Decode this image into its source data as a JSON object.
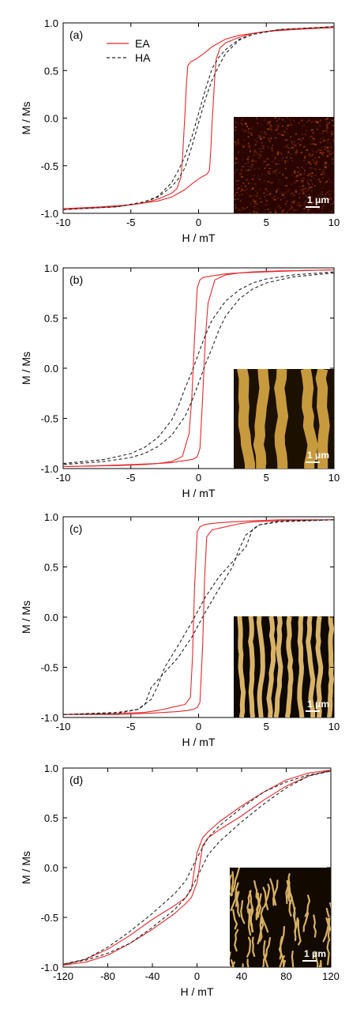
{
  "chart_data": [
    {
      "type": "line",
      "panel_label": "(a)",
      "xlabel": "H / mT",
      "ylabel": "M / Ms",
      "xlim": [
        -10,
        10
      ],
      "ylim": [
        -1.0,
        1.0
      ],
      "xticks": [
        "-10",
        "-5",
        "0",
        "5",
        "10"
      ],
      "yticks": [
        "1.0",
        "0.5",
        "0.0",
        "-0.5",
        "-1.0"
      ],
      "grid": false,
      "legend": [
        "EA",
        "HA"
      ],
      "legend_position": "top-left",
      "inset": {
        "scale_bar": "1 μm",
        "palette": "fine-speckle",
        "colors": [
          "#2a0500",
          "#a8420e"
        ]
      },
      "series": [
        {
          "name": "EA",
          "color": "#e8282b",
          "style": "solid",
          "branches": [
            {
              "x": [
                -10,
                -6,
                -4,
                -3,
                -2,
                -1.6,
                -1.3,
                -1.2,
                -1.1,
                -1.0,
                -0.9,
                -0.8,
                -0.6,
                -0.2,
                0.4,
                1.0,
                2.0,
                3.0,
                5.0,
                7.0,
                10
              ],
              "y": [
                -0.96,
                -0.93,
                -0.89,
                -0.85,
                -0.79,
                -0.74,
                -0.62,
                -0.45,
                -0.2,
                0.05,
                0.35,
                0.55,
                0.59,
                0.62,
                0.68,
                0.75,
                0.83,
                0.87,
                0.91,
                0.93,
                0.95
              ]
            },
            {
              "x": [
                10,
                6,
                4,
                3,
                2,
                1.6,
                1.3,
                1.2,
                1.1,
                1.0,
                0.9,
                0.8,
                0.6,
                0.2,
                -0.4,
                -1.0,
                -2.0,
                -3.0,
                -5.0,
                -7.0,
                -10
              ],
              "y": [
                0.96,
                0.93,
                0.89,
                0.85,
                0.79,
                0.74,
                0.62,
                0.45,
                0.2,
                -0.05,
                -0.35,
                -0.55,
                -0.59,
                -0.62,
                -0.68,
                -0.75,
                -0.83,
                -0.87,
                -0.91,
                -0.93,
                -0.95
              ]
            }
          ]
        },
        {
          "name": "HA",
          "color": "#222222",
          "style": "dashed",
          "branches": [
            {
              "x": [
                -10,
                -6,
                -4,
                -3,
                -2,
                -1.5,
                -1.0,
                -0.5,
                0,
                0.5,
                1.0,
                1.5,
                2.0,
                3.0,
                4.0,
                6.0,
                10
              ],
              "y": [
                -0.96,
                -0.93,
                -0.88,
                -0.83,
                -0.72,
                -0.64,
                -0.52,
                -0.3,
                -0.05,
                0.2,
                0.4,
                0.55,
                0.68,
                0.82,
                0.88,
                0.93,
                0.96
              ]
            },
            {
              "x": [
                10,
                6,
                4,
                3,
                2.0,
                1.5,
                1.0,
                0.5,
                0,
                -0.5,
                -1.0,
                -1.5,
                -2.0,
                -3.0,
                -4.0,
                -6.0,
                -10
              ],
              "y": [
                0.96,
                0.93,
                0.88,
                0.83,
                0.72,
                0.64,
                0.52,
                0.3,
                0.05,
                -0.2,
                -0.4,
                -0.55,
                -0.68,
                -0.82,
                -0.88,
                -0.93,
                -0.96
              ]
            }
          ]
        }
      ]
    },
    {
      "type": "line",
      "panel_label": "(b)",
      "xlabel": "H / mT",
      "ylabel": "M / Ms",
      "xlim": [
        -10,
        10
      ],
      "ylim": [
        -1.0,
        1.0
      ],
      "xticks": [
        "-10",
        "-5",
        "0",
        "5",
        "10"
      ],
      "yticks": [
        "1.0",
        "0.5",
        "0.0",
        "-0.5",
        "-1.0"
      ],
      "grid": false,
      "inset": {
        "scale_bar": "1 μm",
        "palette": "wide-stripes",
        "colors": [
          "#1c1000",
          "#c89a3e"
        ]
      },
      "series": [
        {
          "name": "EA",
          "color": "#e8282b",
          "style": "solid",
          "branches": [
            {
              "x": [
                -10,
                -6,
                -4,
                -3,
                -2,
                -1.2,
                -0.7,
                -0.5,
                -0.3,
                -0.1,
                0.1,
                0.3,
                0.5,
                1.0,
                1.5,
                2.0,
                3.0,
                5.0,
                7.0,
                10
              ],
              "y": [
                -0.98,
                -0.97,
                -0.96,
                -0.95,
                -0.93,
                -0.88,
                -0.65,
                -0.3,
                0.3,
                0.8,
                0.88,
                0.9,
                0.91,
                0.92,
                0.93,
                0.94,
                0.95,
                0.96,
                0.97,
                0.98
              ]
            },
            {
              "x": [
                10,
                6,
                4,
                3,
                2,
                1.2,
                0.7,
                0.5,
                0.3,
                0.1,
                -0.1,
                -0.3,
                -0.5,
                -1.0,
                -1.5,
                -2.0,
                -3.0,
                -5.0,
                -7.0,
                -10
              ],
              "y": [
                0.98,
                0.97,
                0.96,
                0.95,
                0.93,
                0.88,
                0.65,
                0.3,
                -0.3,
                -0.8,
                -0.88,
                -0.9,
                -0.91,
                -0.92,
                -0.93,
                -0.94,
                -0.95,
                -0.96,
                -0.97,
                -0.98
              ]
            }
          ]
        },
        {
          "name": "HA",
          "color": "#222222",
          "style": "dashed",
          "branches": [
            {
              "x": [
                -10,
                -7,
                -5,
                -4,
                -3,
                -2,
                -1.5,
                -1.0,
                -0.5,
                0,
                0.5,
                1.0,
                2.0,
                3.0,
                4.0,
                5.0,
                7.0,
                10
              ],
              "y": [
                -0.95,
                -0.91,
                -0.85,
                -0.79,
                -0.69,
                -0.52,
                -0.38,
                -0.2,
                -0.04,
                0.15,
                0.33,
                0.48,
                0.67,
                0.78,
                0.85,
                0.89,
                0.93,
                0.96
              ]
            },
            {
              "x": [
                10,
                7,
                5,
                4,
                3,
                2,
                1.5,
                1.0,
                0.5,
                0,
                -0.5,
                -1.0,
                -2.0,
                -3.0,
                -4.0,
                -5.0,
                -7.0,
                -10
              ],
              "y": [
                0.95,
                0.91,
                0.85,
                0.79,
                0.69,
                0.52,
                0.38,
                0.2,
                0.04,
                -0.15,
                -0.33,
                -0.48,
                -0.67,
                -0.78,
                -0.85,
                -0.89,
                -0.93,
                -0.96
              ]
            }
          ]
        }
      ]
    },
    {
      "type": "line",
      "panel_label": "(c)",
      "xlabel": "H / mT",
      "ylabel": "M / Ms",
      "xlim": [
        -10,
        10
      ],
      "ylim": [
        -1.0,
        1.0
      ],
      "xticks": [
        "-10",
        "-5",
        "0",
        "5",
        "10"
      ],
      "yticks": [
        "1.0",
        "0.5",
        "0.0",
        "-0.5",
        "-1.0"
      ],
      "grid": false,
      "inset": {
        "scale_bar": "1 μm",
        "palette": "thin-stripes",
        "colors": [
          "#0e0800",
          "#d9b468"
        ]
      },
      "series": [
        {
          "name": "EA",
          "color": "#e8282b",
          "style": "solid",
          "branches": [
            {
              "x": [
                -10,
                -6,
                -4,
                -3,
                -2.0,
                -1.0,
                -0.6,
                -0.45,
                -0.3,
                -0.1,
                0.1,
                0.4,
                0.8,
                1.5,
                2.5,
                4,
                6,
                10
              ],
              "y": [
                -0.97,
                -0.96,
                -0.95,
                -0.93,
                -0.9,
                -0.87,
                -0.8,
                -0.4,
                0.3,
                0.85,
                0.9,
                0.92,
                0.93,
                0.94,
                0.95,
                0.96,
                0.97,
                0.97
              ]
            },
            {
              "x": [
                10,
                6,
                4,
                3,
                2.0,
                1.0,
                0.6,
                0.45,
                0.3,
                0.1,
                -0.1,
                -0.4,
                -0.8,
                -1.5,
                -2.5,
                -4,
                -6,
                -10
              ],
              "y": [
                0.97,
                0.96,
                0.95,
                0.93,
                0.9,
                0.87,
                0.8,
                0.4,
                -0.3,
                -0.85,
                -0.9,
                -0.92,
                -0.93,
                -0.94,
                -0.95,
                -0.96,
                -0.97,
                -0.97
              ]
            }
          ]
        },
        {
          "name": "HA",
          "color": "#222222",
          "style": "dashed",
          "branches": [
            {
              "x": [
                -10,
                -6,
                -4.5,
                -4.0,
                -3.5,
                -2.5,
                -1.5,
                -0.5,
                0.5,
                1.5,
                2.5,
                3.0,
                3.5,
                4.5,
                6,
                10
              ],
              "y": [
                -0.97,
                -0.96,
                -0.92,
                -0.88,
                -0.7,
                -0.55,
                -0.4,
                -0.2,
                0.05,
                0.28,
                0.5,
                0.68,
                0.82,
                0.92,
                0.95,
                0.97
              ]
            },
            {
              "x": [
                10,
                6,
                4.5,
                4.0,
                3.5,
                2.5,
                1.5,
                0.5,
                -0.5,
                -1.5,
                -2.5,
                -3.0,
                -3.5,
                -4.5,
                -6,
                -10
              ],
              "y": [
                0.97,
                0.96,
                0.92,
                0.88,
                0.7,
                0.55,
                0.4,
                0.2,
                -0.05,
                -0.28,
                -0.5,
                -0.68,
                -0.82,
                -0.92,
                -0.95,
                -0.97
              ]
            }
          ]
        }
      ]
    },
    {
      "type": "line",
      "panel_label": "(d)",
      "xlabel": "H / mT",
      "ylabel": "M / Ms",
      "xlim": [
        -120,
        120
      ],
      "ylim": [
        -1.0,
        1.0
      ],
      "xticks": [
        "-120",
        "-80",
        "-40",
        "0",
        "40",
        "80",
        "120"
      ],
      "yticks": [
        "1.0",
        "0.5",
        "0.0",
        "-0.5",
        "-1.0"
      ],
      "grid": false,
      "inset": {
        "scale_bar": "1 μm",
        "palette": "labyrinth",
        "colors": [
          "#120a00",
          "#d8b064"
        ]
      },
      "series": [
        {
          "name": "EA",
          "color": "#e8282b",
          "style": "solid",
          "branches": [
            {
              "x": [
                -120,
                -100,
                -80,
                -60,
                -40,
                -20,
                -10,
                -5,
                0,
                5,
                10,
                20,
                40,
                60,
                80,
                100,
                120
              ],
              "y": [
                -0.98,
                -0.92,
                -0.82,
                -0.68,
                -0.52,
                -0.38,
                -0.3,
                -0.22,
                0.15,
                0.3,
                0.36,
                0.46,
                0.62,
                0.76,
                0.88,
                0.95,
                0.98
              ]
            },
            {
              "x": [
                120,
                100,
                80,
                60,
                40,
                20,
                10,
                5,
                0,
                -5,
                -10,
                -20,
                -40,
                -60,
                -80,
                -100,
                -120
              ],
              "y": [
                0.98,
                0.92,
                0.82,
                0.68,
                0.52,
                0.38,
                0.3,
                0.22,
                -0.15,
                -0.3,
                -0.36,
                -0.46,
                -0.62,
                -0.76,
                -0.88,
                -0.95,
                -0.98
              ]
            }
          ]
        },
        {
          "name": "HA",
          "color": "#222222",
          "style": "dashed",
          "branches": [
            {
              "x": [
                -120,
                -100,
                -80,
                -60,
                -40,
                -20,
                -10,
                0,
                10,
                20,
                40,
                60,
                80,
                100,
                120
              ],
              "y": [
                -0.97,
                -0.93,
                -0.86,
                -0.76,
                -0.6,
                -0.42,
                -0.3,
                -0.1,
                0.13,
                0.26,
                0.46,
                0.64,
                0.8,
                0.92,
                0.97
              ]
            },
            {
              "x": [
                120,
                100,
                80,
                60,
                40,
                20,
                10,
                0,
                -10,
                -20,
                -40,
                -60,
                -80,
                -100,
                -120
              ],
              "y": [
                0.97,
                0.93,
                0.86,
                0.76,
                0.6,
                0.42,
                0.3,
                0.1,
                -0.13,
                -0.26,
                -0.46,
                -0.64,
                -0.8,
                -0.92,
                -0.97
              ]
            }
          ]
        }
      ]
    }
  ]
}
